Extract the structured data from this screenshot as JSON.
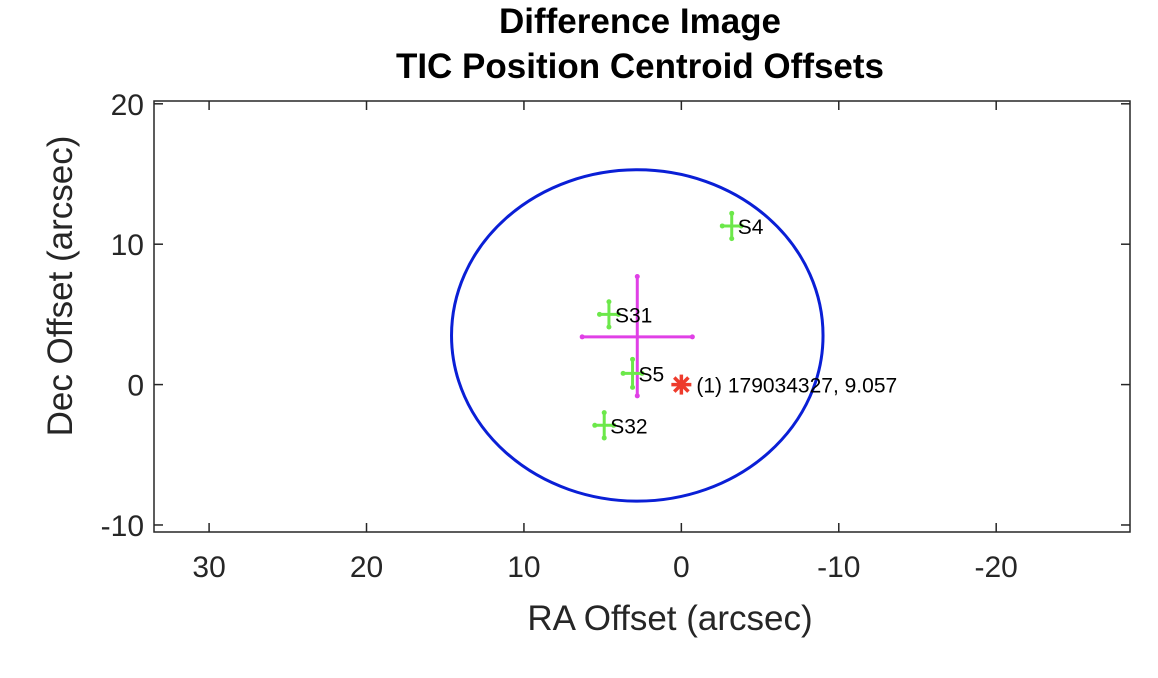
{
  "chart_data": {
    "type": "scatter",
    "title": [
      "Difference Image",
      "TIC Position Centroid Offsets"
    ],
    "xlabel": "RA Offset (arcsec)",
    "ylabel": "Dec Offset (arcsec)",
    "xlim": [
      33.5,
      -28.5
    ],
    "ylim": [
      -10.5,
      20.2
    ],
    "x_reversed": true,
    "xticks": [
      30,
      20,
      10,
      0,
      -10,
      -20
    ],
    "xtick_labels": [
      "30",
      "20",
      "10",
      "0",
      "-10",
      "-20"
    ],
    "yticks": [
      20,
      10,
      0,
      -10
    ],
    "ytick_labels": [
      "20",
      "10",
      "0",
      "-10"
    ],
    "uncertainty_circle": {
      "center": [
        2.8,
        3.5
      ],
      "radius_ra": 11.8,
      "radius_dec": 11.8,
      "color": "#0a1fd6"
    },
    "mean_centroid": {
      "x": 2.8,
      "y": 3.4,
      "x_err": 3.5,
      "y_err_up": 4.3,
      "y_err_down": 4.2,
      "color": "#e040e6"
    },
    "target": {
      "x": 0.0,
      "y": 0.0,
      "label": "(1) 179034327, 9.057",
      "color": "#ee3b2c"
    },
    "sectors": [
      {
        "label": "S4",
        "x": -3.2,
        "y": 11.3,
        "x_err": 0.6,
        "y_err": 0.9
      },
      {
        "label": "S31",
        "x": 4.6,
        "y": 5.0,
        "x_err": 0.6,
        "y_err": 0.9
      },
      {
        "label": "S5",
        "x": 3.1,
        "y": 0.8,
        "x_err": 0.6,
        "y_err": 1.0
      },
      {
        "label": "S32",
        "x": 4.9,
        "y": -2.9,
        "x_err": 0.6,
        "y_err": 0.9
      }
    ],
    "sector_color": "#6ce84a"
  }
}
